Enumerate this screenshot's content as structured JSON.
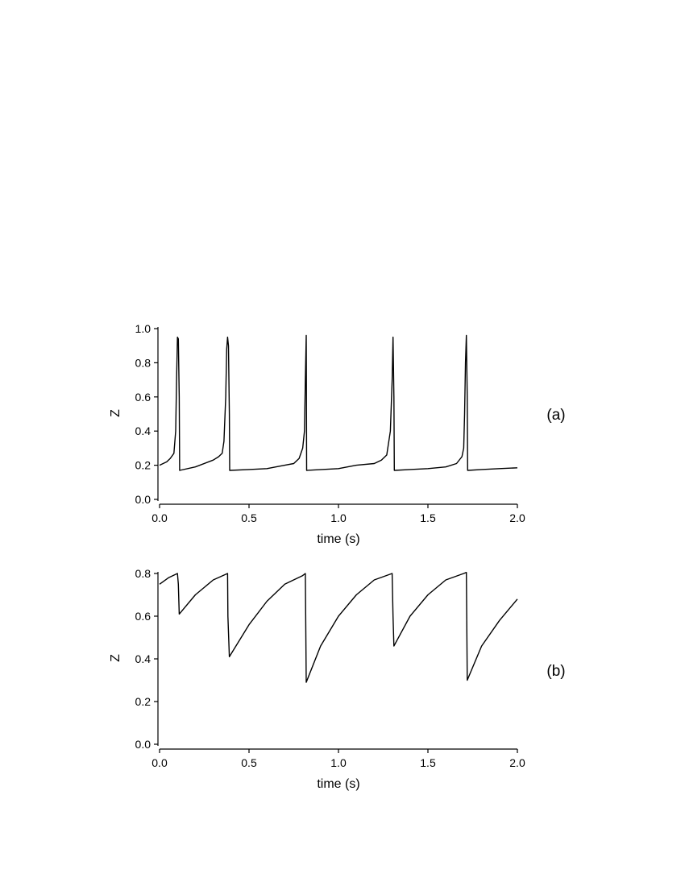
{
  "chart_data": [
    {
      "type": "line",
      "panel_label": "(a)",
      "xlabel": "time (s)",
      "ylabel": "Z",
      "xlim": [
        0,
        2.0
      ],
      "ylim": [
        0,
        1.0
      ],
      "xticks": [
        "0.0",
        "0.5",
        "1.0",
        "1.5",
        "2.0"
      ],
      "yticks": [
        "0.0",
        "0.2",
        "0.4",
        "0.6",
        "0.8",
        "1.0"
      ],
      "grid": false,
      "series": [
        {
          "x": [
            0.0,
            0.02,
            0.04,
            0.06,
            0.08,
            0.09,
            0.095,
            0.1,
            0.105,
            0.11,
            0.112,
            0.2,
            0.3,
            0.33,
            0.35,
            0.36,
            0.37,
            0.375,
            0.38,
            0.385,
            0.39,
            0.392,
            0.5,
            0.6,
            0.7,
            0.75,
            0.78,
            0.8,
            0.81,
            0.815,
            0.82,
            0.822,
            1.0,
            1.1,
            1.2,
            1.24,
            1.27,
            1.29,
            1.3,
            1.305,
            1.31,
            1.312,
            1.4,
            1.5,
            1.6,
            1.66,
            1.69,
            1.7,
            1.705,
            1.71,
            1.715,
            1.72,
            1.722,
            1.8,
            1.9,
            2.0
          ],
          "y": [
            0.2,
            0.21,
            0.22,
            0.24,
            0.27,
            0.4,
            0.7,
            0.95,
            0.94,
            0.6,
            0.17,
            0.19,
            0.23,
            0.25,
            0.27,
            0.34,
            0.6,
            0.88,
            0.95,
            0.9,
            0.5,
            0.17,
            0.175,
            0.18,
            0.2,
            0.21,
            0.24,
            0.3,
            0.4,
            0.7,
            0.96,
            0.17,
            0.18,
            0.2,
            0.21,
            0.23,
            0.26,
            0.4,
            0.7,
            0.95,
            0.6,
            0.17,
            0.175,
            0.18,
            0.19,
            0.21,
            0.25,
            0.3,
            0.5,
            0.8,
            0.96,
            0.6,
            0.17,
            0.175,
            0.18,
            0.185
          ]
        }
      ]
    },
    {
      "type": "line",
      "panel_label": "(b)",
      "xlabel": "time (s)",
      "ylabel": "Z",
      "xlim": [
        0,
        2.0
      ],
      "ylim": [
        0,
        0.8
      ],
      "xticks": [
        "0.0",
        "0.5",
        "1.0",
        "1.5",
        "2.0"
      ],
      "yticks": [
        "0.0",
        "0.2",
        "0.4",
        "0.6",
        "0.8"
      ],
      "grid": false,
      "series": [
        {
          "x": [
            0.0,
            0.05,
            0.1,
            0.105,
            0.11,
            0.2,
            0.3,
            0.38,
            0.382,
            0.39,
            0.5,
            0.6,
            0.7,
            0.8,
            0.815,
            0.82,
            0.9,
            1.0,
            1.1,
            1.2,
            1.3,
            1.305,
            1.31,
            1.4,
            1.5,
            1.6,
            1.7,
            1.715,
            1.72,
            1.8,
            1.9,
            2.0
          ],
          "y": [
            0.75,
            0.78,
            0.8,
            0.75,
            0.61,
            0.7,
            0.77,
            0.8,
            0.6,
            0.41,
            0.56,
            0.67,
            0.75,
            0.79,
            0.8,
            0.29,
            0.46,
            0.6,
            0.7,
            0.77,
            0.8,
            0.6,
            0.46,
            0.6,
            0.7,
            0.77,
            0.8,
            0.805,
            0.3,
            0.46,
            0.58,
            0.68
          ]
        }
      ]
    }
  ]
}
